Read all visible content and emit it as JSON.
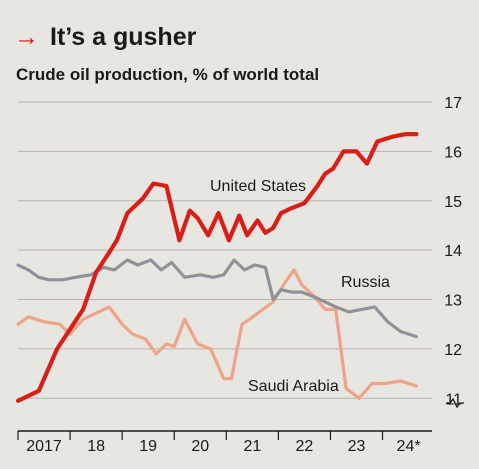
{
  "header": {
    "arrow": "→",
    "title": "It’s a gusher",
    "subtitle": "Crude oil production, % of world total"
  },
  "colors": {
    "background": "#e8e6e1",
    "accent": "#e3120b",
    "united_states": "#d91e18",
    "russia": "#8f9397",
    "saudi_arabia": "#eda488",
    "grid": "#b8b5af"
  },
  "chart_data": {
    "type": "line",
    "title": "It’s a gusher",
    "subtitle": "Crude oil production, % of world total",
    "xlabel": "",
    "ylabel": "",
    "xlim": [
      2017,
      2024.95
    ],
    "ylim": [
      10.5,
      17
    ],
    "y_ticks": [
      11,
      12,
      13,
      14,
      15,
      16,
      17
    ],
    "y_axis_break": true,
    "x_ticks": [
      {
        "value": 2017,
        "label": "2017"
      },
      {
        "value": 2018,
        "label": "18"
      },
      {
        "value": 2019,
        "label": "19"
      },
      {
        "value": 2020,
        "label": "20"
      },
      {
        "value": 2021,
        "label": "21"
      },
      {
        "value": 2022,
        "label": "22"
      },
      {
        "value": 2023,
        "label": "23"
      },
      {
        "value": 2024,
        "label": "24*"
      }
    ],
    "grid": true,
    "legend": "direct labels",
    "series": [
      {
        "name": "United States",
        "color_key": "united_states",
        "x": [
          2017.0,
          2017.4,
          2017.75,
          2018.0,
          2018.25,
          2018.5,
          2018.75,
          2018.9,
          2019.1,
          2019.4,
          2019.6,
          2019.85,
          2020.1,
          2020.3,
          2020.45,
          2020.65,
          2020.85,
          2021.05,
          2021.25,
          2021.4,
          2021.6,
          2021.75,
          2021.9,
          2022.05,
          2022.25,
          2022.5,
          2022.75,
          2022.9,
          2023.05,
          2023.25,
          2023.5,
          2023.7,
          2023.9,
          2024.2,
          2024.45,
          2024.65
        ],
        "y": [
          10.95,
          11.15,
          12.0,
          12.4,
          12.8,
          13.55,
          13.95,
          14.2,
          14.75,
          15.05,
          15.35,
          15.3,
          14.2,
          14.8,
          14.65,
          14.3,
          14.75,
          14.2,
          14.7,
          14.3,
          14.6,
          14.35,
          14.45,
          14.75,
          14.85,
          14.95,
          15.3,
          15.55,
          15.65,
          16.0,
          16.0,
          15.75,
          16.2,
          16.3,
          16.35,
          16.35
        ]
      },
      {
        "name": "Russia",
        "color_key": "russia",
        "x": [
          2017.0,
          2017.2,
          2017.4,
          2017.6,
          2017.85,
          2018.1,
          2018.4,
          2018.65,
          2018.85,
          2019.1,
          2019.3,
          2019.55,
          2019.75,
          2019.95,
          2020.2,
          2020.5,
          2020.75,
          2020.95,
          2021.15,
          2021.35,
          2021.55,
          2021.75,
          2021.9,
          2022.05,
          2022.25,
          2022.45,
          2022.7,
          2022.9,
          2023.1,
          2023.35,
          2023.6,
          2023.85,
          2024.1,
          2024.35,
          2024.65
        ],
        "y": [
          13.7,
          13.6,
          13.45,
          13.4,
          13.4,
          13.45,
          13.5,
          13.65,
          13.6,
          13.8,
          13.7,
          13.8,
          13.6,
          13.75,
          13.45,
          13.5,
          13.45,
          13.5,
          13.8,
          13.6,
          13.7,
          13.65,
          13.0,
          13.2,
          13.15,
          13.15,
          13.05,
          12.95,
          12.85,
          12.75,
          12.8,
          12.85,
          12.55,
          12.35,
          12.25
        ]
      },
      {
        "name": "Saudi Arabia",
        "color_key": "saudi_arabia",
        "x": [
          2017.0,
          2017.2,
          2017.5,
          2017.8,
          2018.0,
          2018.25,
          2018.55,
          2018.75,
          2019.0,
          2019.2,
          2019.45,
          2019.65,
          2019.85,
          2020.0,
          2020.2,
          2020.45,
          2020.7,
          2020.95,
          2021.1,
          2021.3,
          2021.45,
          2021.7,
          2021.9,
          2022.1,
          2022.3,
          2022.45,
          2022.7,
          2022.9,
          2023.1,
          2023.3,
          2023.55,
          2023.8,
          2024.05,
          2024.35,
          2024.65
        ],
        "y": [
          12.5,
          12.65,
          12.55,
          12.5,
          12.3,
          12.6,
          12.75,
          12.85,
          12.5,
          12.3,
          12.2,
          11.9,
          12.1,
          12.05,
          12.6,
          12.1,
          12.0,
          11.4,
          11.4,
          12.5,
          12.6,
          12.8,
          12.95,
          13.3,
          13.6,
          13.3,
          13.05,
          12.8,
          12.8,
          11.2,
          11.0,
          11.3,
          11.3,
          11.35,
          11.25
        ]
      }
    ],
    "labels": [
      {
        "series": "United States",
        "text": "United States"
      },
      {
        "series": "Russia",
        "text": "Russia"
      },
      {
        "series": "Saudi Arabia",
        "text": "Saudi Arabia"
      }
    ]
  }
}
